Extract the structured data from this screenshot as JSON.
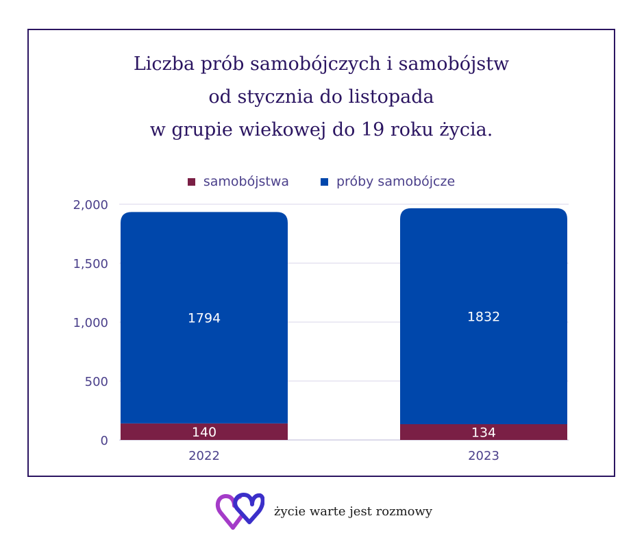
{
  "chart_data": {
    "type": "bar",
    "stacked": true,
    "title_lines": [
      "Liczba prób samobójczych i samobójstw",
      "od stycznia do listopada",
      "w grupie wiekowej do 19 roku życia."
    ],
    "categories": [
      "2022",
      "2023"
    ],
    "series": [
      {
        "name": "samobójstwa",
        "values": [
          140,
          134
        ],
        "color": "#7a1f45"
      },
      {
        "name": "próby samobójcze",
        "values": [
          1794,
          1832
        ],
        "color": "#0047ab"
      }
    ],
    "ylim": [
      0,
      2000
    ],
    "yticks": [
      0,
      500,
      1000,
      1500,
      2000
    ],
    "ytick_labels": [
      "0",
      "500",
      "1,000",
      "1,500",
      "2,000"
    ],
    "grid": true,
    "legend_position": "top-center"
  },
  "colors": {
    "frame": "#2a1460",
    "title": "#2a1460",
    "axis_text": "#4a3f8a",
    "grid": "#d8d6ea"
  },
  "footer": {
    "logo_icon": "double-heart-ribbon-icon",
    "text": "życie warte jest rozmowy"
  }
}
